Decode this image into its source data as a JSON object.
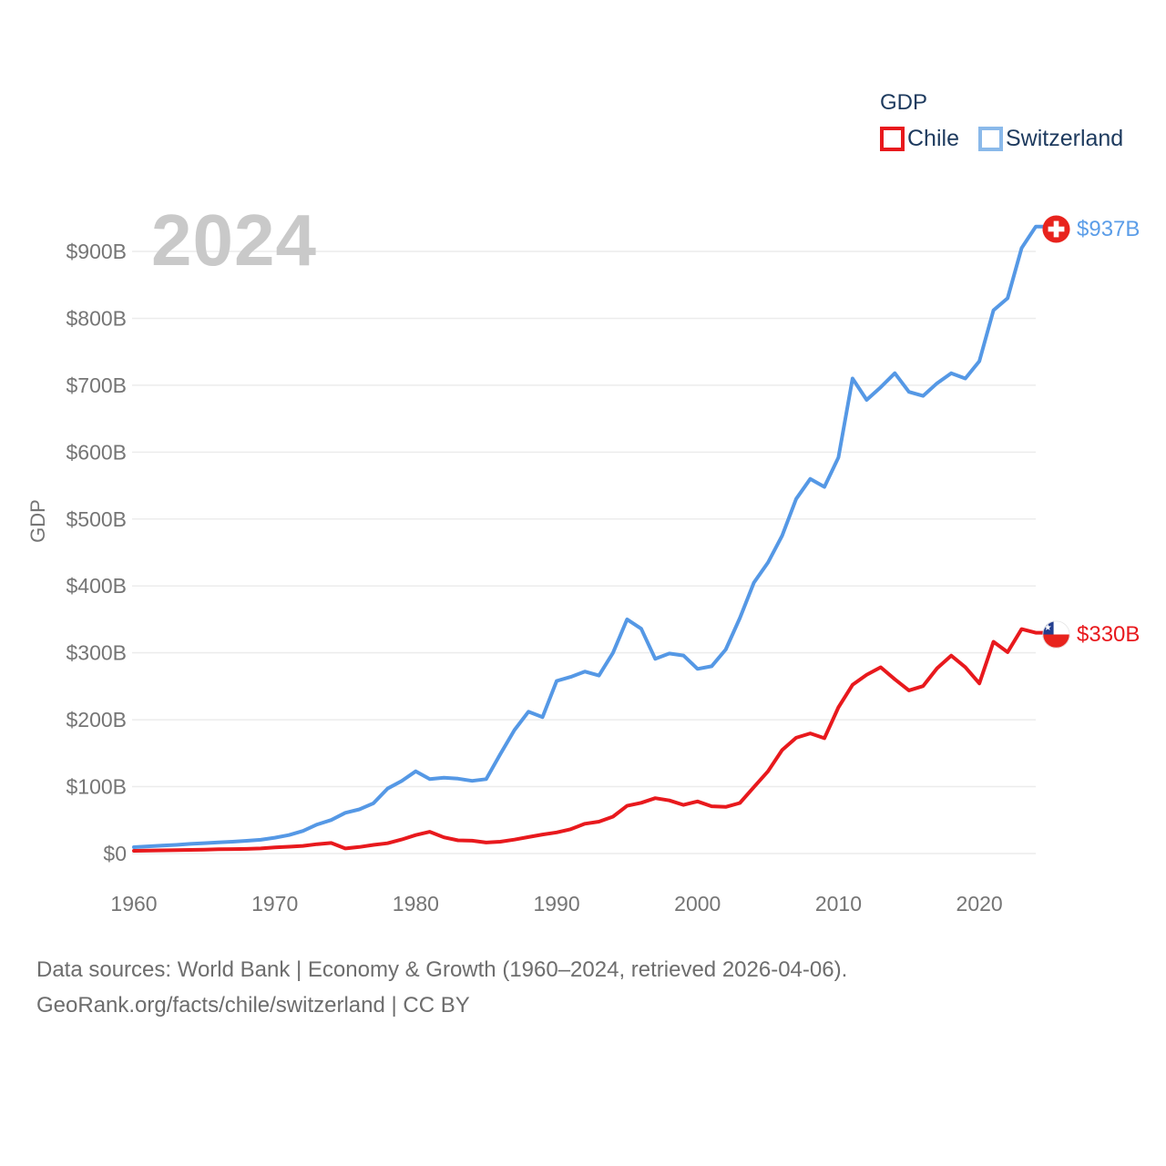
{
  "watermark": "2024",
  "legend": {
    "title": "GDP",
    "series": [
      {
        "label": "Chile",
        "color": "#e8191d"
      },
      {
        "label": "Switzerland",
        "color": "#5598e5"
      }
    ]
  },
  "y_axis": {
    "title": "GDP",
    "ticks": [
      "$0",
      "$100B",
      "$200B",
      "$300B",
      "$400B",
      "$500B",
      "$600B",
      "$700B",
      "$800B",
      "$900B"
    ]
  },
  "x_axis": {
    "ticks": [
      "1960",
      "1970",
      "1980",
      "1990",
      "2000",
      "2010",
      "2020"
    ]
  },
  "end_labels": {
    "switzerland": "$937B",
    "chile": "$330B"
  },
  "footer": {
    "line1": "Data sources: World Bank | Economy & Growth (1960–2024, retrieved 2026-04-06).",
    "line2": "GeoRank.org/facts/chile/switzerland | CC BY"
  },
  "chart_data": {
    "type": "line",
    "title": "GDP",
    "ylabel": "GDP",
    "units": "billions USD",
    "grid": true,
    "legend_position": "top-right",
    "ylim": [
      0,
      950
    ],
    "ytick_step": 100,
    "x": [
      1960,
      1961,
      1962,
      1963,
      1964,
      1965,
      1966,
      1967,
      1968,
      1969,
      1970,
      1971,
      1972,
      1973,
      1974,
      1975,
      1976,
      1977,
      1978,
      1979,
      1980,
      1981,
      1982,
      1983,
      1984,
      1985,
      1986,
      1987,
      1988,
      1989,
      1990,
      1991,
      1992,
      1993,
      1994,
      1995,
      1996,
      1997,
      1998,
      1999,
      2000,
      2001,
      2002,
      2003,
      2004,
      2005,
      2006,
      2007,
      2008,
      2009,
      2010,
      2011,
      2012,
      2013,
      2014,
      2015,
      2016,
      2017,
      2018,
      2019,
      2020,
      2021,
      2022,
      2023,
      2024
    ],
    "series": [
      {
        "name": "Chile",
        "color": "#e8191d",
        "end_value_label": "$330B",
        "values": [
          4.1,
          4.5,
          4.8,
          5.1,
          5.4,
          5.9,
          6.6,
          6.7,
          7.0,
          7.6,
          9.1,
          10.2,
          11.4,
          14.0,
          15.8,
          7.6,
          9.8,
          13.0,
          15.4,
          21.0,
          27.6,
          32.6,
          24.3,
          19.8,
          19.2,
          16.5,
          17.7,
          20.9,
          24.6,
          28.4,
          31.6,
          36.4,
          44.5,
          47.7,
          55.2,
          71.3,
          75.8,
          82.8,
          79.4,
          72.7,
          77.9,
          70.7,
          69.7,
          75.6,
          99.2,
          122.9,
          154.7,
          173.1,
          179.6,
          172.4,
          218.5,
          252.2,
          267.1,
          278.4,
          260.5,
          243.9,
          250.3,
          277.0,
          295.9,
          278.6,
          254.3,
          316.6,
          301.0,
          335.5,
          330.0
        ]
      },
      {
        "name": "Switzerland",
        "color": "#5598e5",
        "end_value_label": "$937B",
        "values": [
          9.5,
          10.7,
          11.9,
          13.0,
          14.4,
          15.5,
          16.6,
          17.7,
          19.0,
          20.6,
          23.7,
          27.6,
          33.7,
          43.4,
          50.1,
          60.8,
          66.1,
          75.2,
          97.1,
          108.4,
          123.0,
          111.3,
          113.3,
          111.9,
          108.7,
          111.3,
          148.5,
          184.5,
          212.0,
          204.0,
          258.0,
          264.0,
          272.0,
          266.0,
          300.0,
          350.0,
          336.0,
          291.0,
          299.0,
          296.0,
          276.0,
          280.0,
          305.0,
          352.0,
          405.0,
          435.0,
          475.0,
          530.0,
          560.0,
          548.0,
          592.0,
          710.0,
          678.0,
          697.0,
          718.0,
          690.0,
          684.0,
          703.0,
          718.0,
          710.0,
          736.0,
          812.0,
          830.0,
          905.0,
          937.0
        ]
      }
    ]
  }
}
